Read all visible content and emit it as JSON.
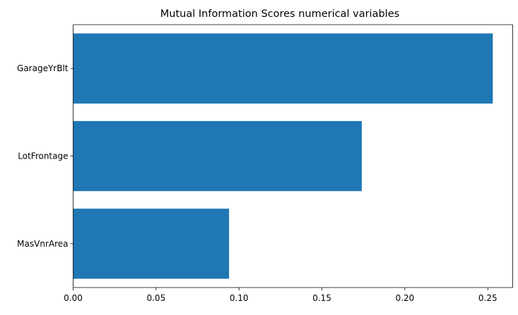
{
  "chart_data": {
    "type": "bar",
    "orientation": "horizontal",
    "title": "Mutual Information Scores numerical variables",
    "xlabel": "",
    "ylabel": "",
    "categories": [
      "GarageYrBlt",
      "LotFrontage",
      "MasVnrArea"
    ],
    "values": [
      0.253,
      0.174,
      0.094
    ],
    "xlim": [
      0,
      0.265
    ],
    "xticks": [
      0.0,
      0.05,
      0.1,
      0.15,
      0.2,
      0.25
    ],
    "xtick_labels": [
      "0.00",
      "0.05",
      "0.10",
      "0.15",
      "0.20",
      "0.25"
    ],
    "grid": false,
    "legend": "none",
    "bar_color": "#1f77b4"
  }
}
